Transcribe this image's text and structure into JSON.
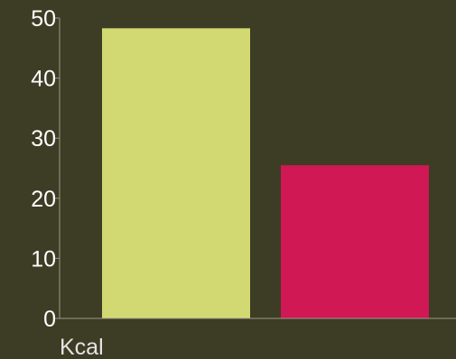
{
  "chart_data": {
    "type": "bar",
    "categories": [
      "",
      ""
    ],
    "values": [
      48.3,
      25.5
    ],
    "colors": [
      "#d3d972",
      "#d01855"
    ],
    "title": "",
    "xlabel": "Kcal",
    "ylabel": "",
    "ylim": [
      0,
      50
    ],
    "yticks": [
      "0",
      "10",
      "20",
      "30",
      "40",
      "50"
    ],
    "grid": false,
    "legend": "none"
  },
  "colors": {
    "background": "#3d3c25",
    "axis": "#9a9a88",
    "tick_text": "#ffffff",
    "label_text": "#e4e4e4"
  }
}
